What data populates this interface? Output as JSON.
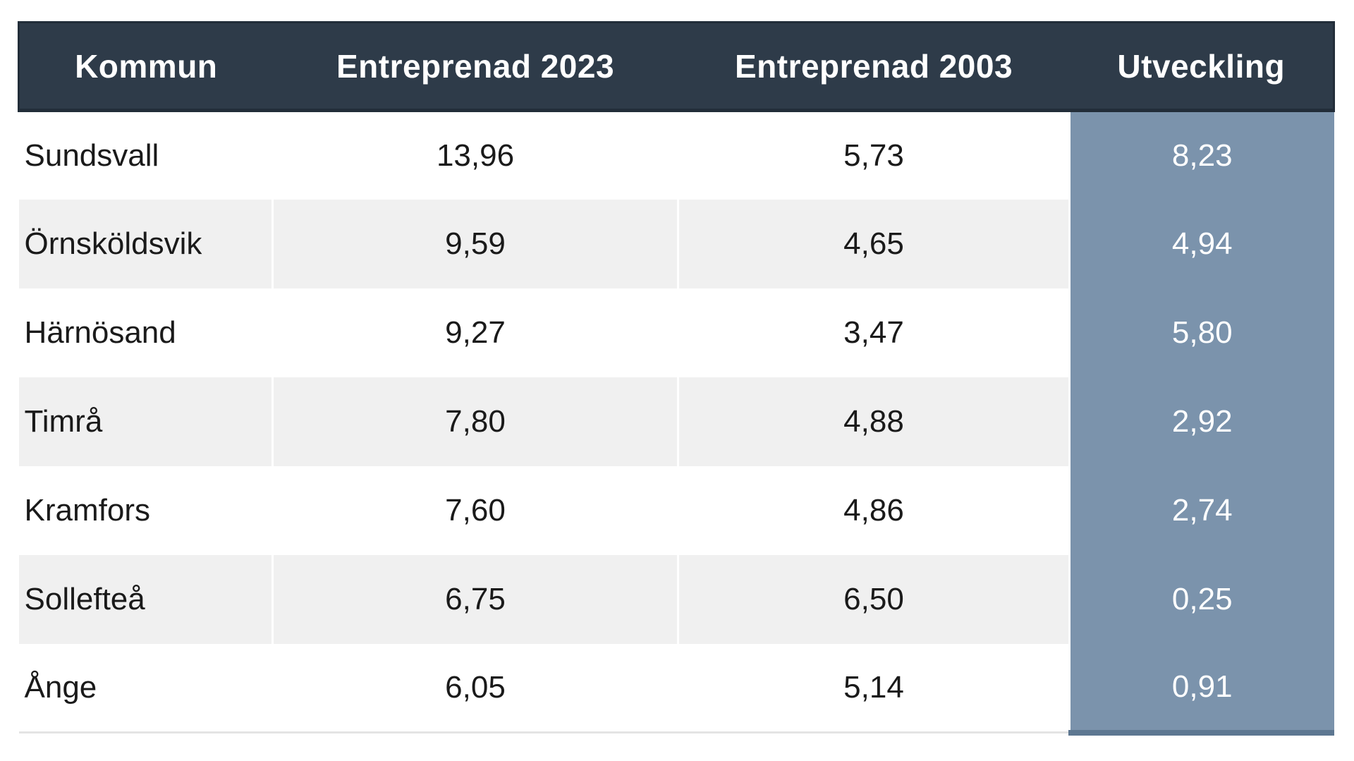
{
  "table": {
    "columns": [
      "Kommun",
      "Entreprenad 2023",
      "Entreprenad 2003",
      "Utveckling"
    ],
    "rows": [
      {
        "kommun": "Sundsvall",
        "e2023": "13,96",
        "e2003": "5,73",
        "utveckling": "8,23"
      },
      {
        "kommun": "Örnsköldsvik",
        "e2023": "9,59",
        "e2003": "4,65",
        "utveckling": "4,94"
      },
      {
        "kommun": "Härnösand",
        "e2023": "9,27",
        "e2003": "3,47",
        "utveckling": "5,80"
      },
      {
        "kommun": "Timrå",
        "e2023": "7,80",
        "e2003": "4,88",
        "utveckling": "2,92"
      },
      {
        "kommun": "Kramfors",
        "e2023": "7,60",
        "e2003": "4,86",
        "utveckling": "2,74"
      },
      {
        "kommun": "Sollefteå",
        "e2023": "6,75",
        "e2003": "6,50",
        "utveckling": "0,25"
      },
      {
        "kommun": "Ånge",
        "e2023": "6,05",
        "e2003": "5,14",
        "utveckling": "0,91"
      }
    ]
  },
  "colors": {
    "header_background": "#2e3b49",
    "header_text": "#ffffff",
    "utveckling_column_background": "#7b93ac",
    "utveckling_column_text": "#ffffff",
    "row_alt_background": "#f0f0f0",
    "row_background": "#ffffff",
    "body_text": "#1a1a1a"
  },
  "chart_data": {
    "type": "table",
    "title": "",
    "categories": [
      "Sundsvall",
      "Örnsköldsvik",
      "Härnösand",
      "Timrå",
      "Kramfors",
      "Sollefteå",
      "Ånge"
    ],
    "series": [
      {
        "name": "Entreprenad 2023",
        "values": [
          13.96,
          9.59,
          9.27,
          7.8,
          7.6,
          6.75,
          6.05
        ]
      },
      {
        "name": "Entreprenad 2003",
        "values": [
          5.73,
          4.65,
          3.47,
          4.88,
          4.86,
          6.5,
          5.14
        ]
      },
      {
        "name": "Utveckling",
        "values": [
          8.23,
          4.94,
          5.8,
          2.92,
          2.74,
          0.25,
          0.91
        ]
      }
    ],
    "layout_hints": {
      "decimal_separator": ",",
      "highlighted_column": "Utveckling",
      "row_banding": true
    }
  }
}
